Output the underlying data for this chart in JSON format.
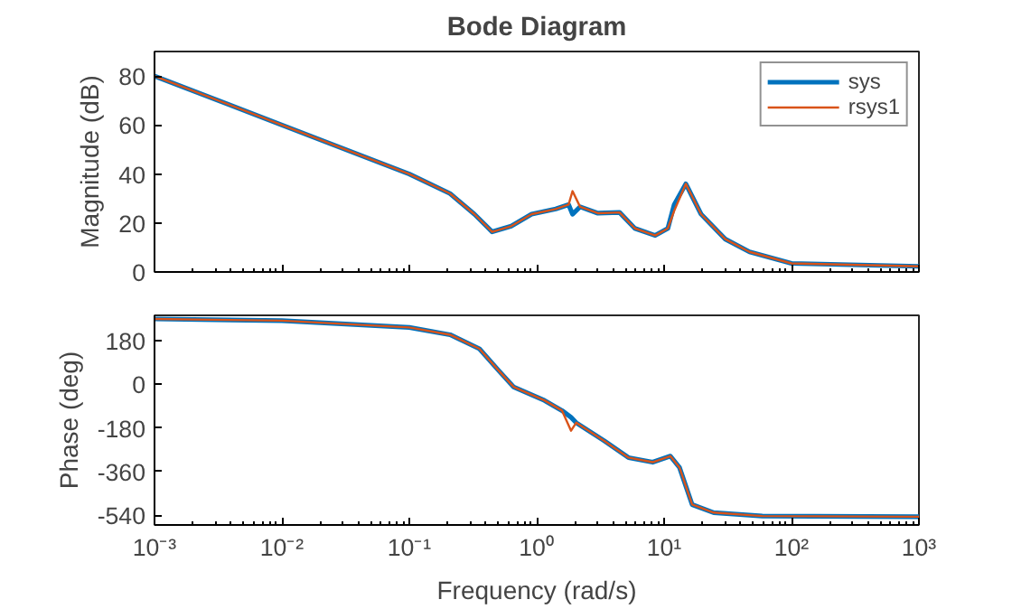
{
  "chart_data": [
    {
      "type": "line",
      "title": "Bode Diagram",
      "ylabel": "Magnitude (dB)",
      "log": "x",
      "grid": false,
      "legend": "top right",
      "tick_labels": "y",
      "xlim": [
        0.001,
        1000
      ],
      "xticks": [
        0.001,
        0.01,
        0.1,
        1,
        10,
        100,
        1000
      ],
      "ylim": [
        0,
        90
      ],
      "yticks": [
        0,
        20,
        40,
        60,
        80
      ],
      "x": [
        0.001,
        0.01,
        0.1,
        0.209,
        0.324,
        0.447,
        0.631,
        0.912,
        1.41,
        1.78,
        1.91,
        2.19,
        3.02,
        4.47,
        5.89,
        8.51,
        10.7,
        12.0,
        14.8,
        19.5,
        30.2,
        46.8,
        100,
        1000
      ],
      "series": [
        {
          "name": "sys",
          "color": "#0072bd",
          "values": [
            80,
            60,
            40,
            32,
            23.6,
            16.4,
            18.7,
            23.6,
            25.7,
            27.5,
            23.6,
            26.6,
            24,
            24.3,
            17.8,
            14.9,
            17.8,
            27.5,
            36,
            23.6,
            13.4,
            8.2,
            3.5,
            2.3
          ]
        },
        {
          "name": "rsys1",
          "color": "#d95319",
          "values": [
            80,
            60,
            40,
            32,
            23.6,
            16.4,
            18.7,
            23.6,
            25.7,
            27.5,
            33,
            26.6,
            24,
            24.3,
            17.8,
            14.9,
            17.8,
            25,
            36,
            23.6,
            13.4,
            8.2,
            3.5,
            2.3
          ]
        }
      ]
    },
    {
      "type": "line",
      "ylabel": "Phase (deg)",
      "xlabel": "Frequency (rad/s)",
      "log": "x",
      "grid": false,
      "legend": false,
      "xlim": [
        0.001,
        1000
      ],
      "xticks": [
        {
          "value": 0.001,
          "label": "10⁻³"
        },
        {
          "value": 0.01,
          "label": "10⁻²"
        },
        {
          "value": 0.1,
          "label": "10⁻¹"
        },
        {
          "value": 1,
          "label": "10⁰"
        },
        {
          "value": 10,
          "label": "10¹"
        },
        {
          "value": 100,
          "label": "10²"
        },
        {
          "value": 1000,
          "label": "10³"
        }
      ],
      "ylim": [
        -580,
        285
      ],
      "yticks": [
        -540,
        -360,
        -180,
        0,
        180
      ],
      "x": [
        0.001,
        0.01,
        0.1,
        0.209,
        0.355,
        0.501,
        0.661,
        1.15,
        1.58,
        1.86,
        2.04,
        3.39,
        5.25,
        8.13,
        11.2,
        13.2,
        16.6,
        24.5,
        58.9,
        1000
      ],
      "series": [
        {
          "color": "#0072bd",
          "values": [
            270,
            263,
            235,
            205,
            147,
            58,
            -11,
            -66,
            -108,
            -136,
            -158,
            -233,
            -302,
            -321,
            -296,
            -343,
            -496,
            -529,
            -543,
            -546
          ]
        },
        {
          "color": "#d95319",
          "values": [
            270,
            263,
            235,
            205,
            147,
            58,
            -11,
            -66,
            -108,
            -191,
            -158,
            -233,
            -302,
            -321,
            -296,
            -343,
            -496,
            -529,
            -543,
            -546
          ]
        }
      ]
    }
  ]
}
